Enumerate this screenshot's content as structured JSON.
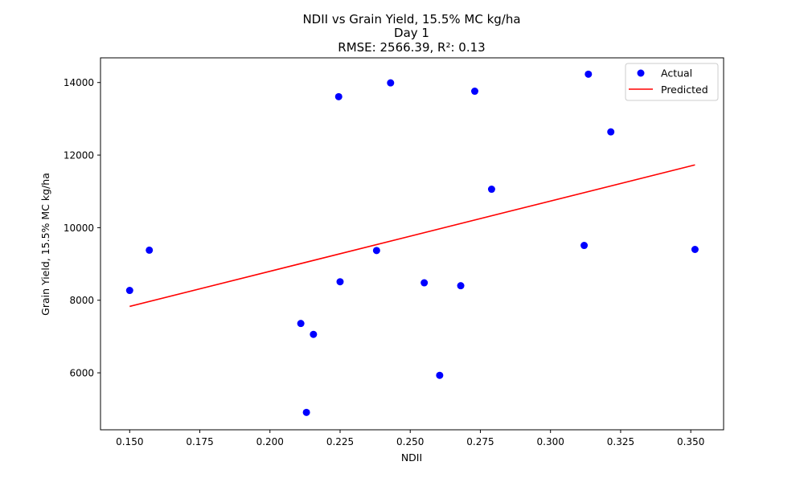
{
  "chart_data": {
    "type": "scatter",
    "title_lines": [
      "NDII vs Grain Yield, 15.5% MC kg/ha",
      "Day 1",
      "RMSE: 2566.39, R²: 0.13"
    ],
    "xlabel": "NDII",
    "ylabel": "Grain Yield, 15.5% MC kg/ha",
    "xlim": [
      0.1396,
      0.3617
    ],
    "ylim": [
      4430,
      14680
    ],
    "xticks": [
      0.15,
      0.175,
      0.2,
      0.225,
      0.25,
      0.275,
      0.3,
      0.325,
      0.35
    ],
    "xtick_labels": [
      "0.150",
      "0.175",
      "0.200",
      "0.225",
      "0.250",
      "0.275",
      "0.300",
      "0.325",
      "0.350"
    ],
    "yticks": [
      6000,
      8000,
      10000,
      12000,
      14000
    ],
    "ytick_labels": [
      "6000",
      "8000",
      "10000",
      "12000",
      "14000"
    ],
    "grid": false,
    "legend_position": "top-right",
    "series": [
      {
        "name": "Actual",
        "kind": "scatter",
        "color": "#0000ff",
        "points": [
          {
            "x": 0.15,
            "y": 8270
          },
          {
            "x": 0.157,
            "y": 9380
          },
          {
            "x": 0.211,
            "y": 7360
          },
          {
            "x": 0.213,
            "y": 4910
          },
          {
            "x": 0.2155,
            "y": 7060
          },
          {
            "x": 0.2245,
            "y": 13610
          },
          {
            "x": 0.225,
            "y": 8510
          },
          {
            "x": 0.238,
            "y": 9370
          },
          {
            "x": 0.243,
            "y": 13990
          },
          {
            "x": 0.255,
            "y": 8480
          },
          {
            "x": 0.2605,
            "y": 5930
          },
          {
            "x": 0.268,
            "y": 8400
          },
          {
            "x": 0.273,
            "y": 13760
          },
          {
            "x": 0.279,
            "y": 11060
          },
          {
            "x": 0.312,
            "y": 9510
          },
          {
            "x": 0.3135,
            "y": 14230
          },
          {
            "x": 0.3215,
            "y": 12640
          },
          {
            "x": 0.3515,
            "y": 9400
          }
        ]
      },
      {
        "name": "Predicted",
        "kind": "line",
        "color": "#ff0000",
        "points": [
          {
            "x": 0.15,
            "y": 7830
          },
          {
            "x": 0.3515,
            "y": 11730
          }
        ]
      }
    ]
  }
}
